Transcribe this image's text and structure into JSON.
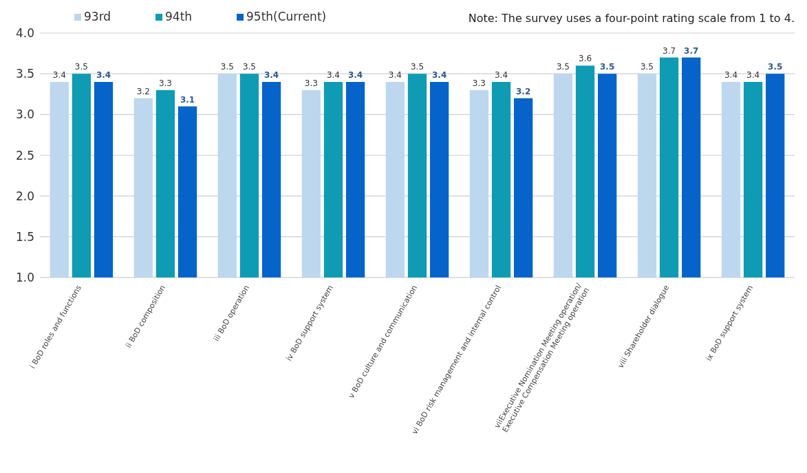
{
  "chart_data": {
    "type": "bar",
    "categories": [
      "i BoD roles and functions",
      "ii BoD composition",
      "iii BoD operation",
      "iv BoD support system",
      "v BoD culture and communication",
      "vi BoD risk management and internal control",
      "viiExecutive Nomination Meeting operation/\nExecutive Compensation Meeting operation",
      "viii Shareholder dialogue",
      "ix BoD support system"
    ],
    "series": [
      {
        "name": "93rd",
        "color": "#bdd7ee",
        "values": [
          3.4,
          3.2,
          3.5,
          3.3,
          3.4,
          3.3,
          3.5,
          3.5,
          3.4
        ]
      },
      {
        "name": "94th",
        "color": "#0f9bb4",
        "values": [
          3.5,
          3.3,
          3.5,
          3.4,
          3.5,
          3.4,
          3.6,
          3.7,
          3.4
        ]
      },
      {
        "name": "95th(Current)",
        "color": "#0563c9",
        "values": [
          3.4,
          3.1,
          3.4,
          3.4,
          3.4,
          3.2,
          3.5,
          3.7,
          3.5
        ]
      }
    ],
    "ylim": [
      1.0,
      4.0
    ],
    "yticks": [
      {
        "value": 1.0,
        "label": "1.0"
      },
      {
        "value": 1.5,
        "label": "1.5"
      },
      {
        "value": 2.0,
        "label": "2.0"
      },
      {
        "value": 2.5,
        "label": "2.5"
      },
      {
        "value": 3.0,
        "label": "3.0"
      },
      {
        "value": 3.5,
        "label": "3.5"
      },
      {
        "value": 4.0,
        "label": "4.0"
      }
    ],
    "grid": "y",
    "legend": "top left",
    "data_labels": true,
    "annotations": [
      "Note: The survey uses a four-point rating scale from 1 to 4."
    ]
  }
}
